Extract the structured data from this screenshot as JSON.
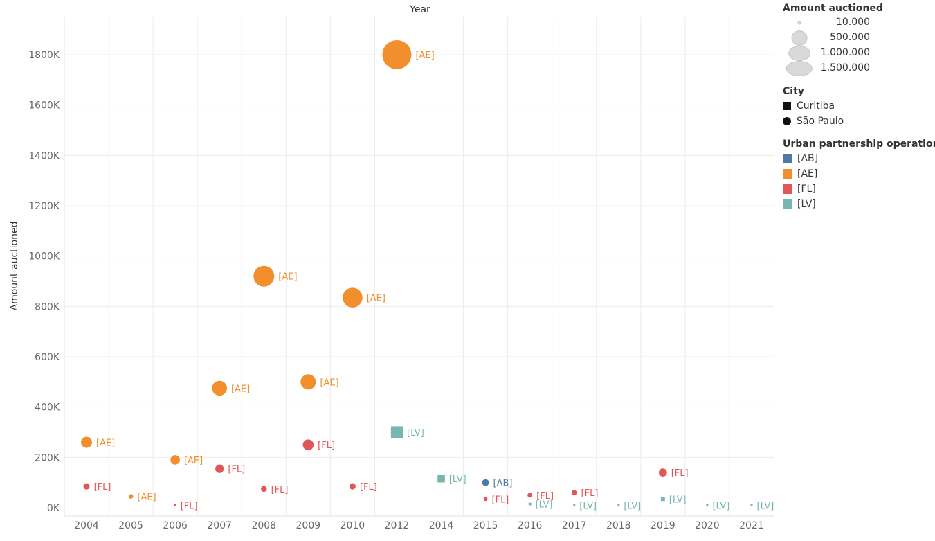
{
  "chart_data": {
    "type": "scatter",
    "title": "Year",
    "ylabel": "Amount auctioned",
    "ylim": [
      0,
      1900000
    ],
    "yticks": [
      0,
      200000,
      400000,
      600000,
      800000,
      1000000,
      1200000,
      1400000,
      1600000,
      1800000
    ],
    "ytick_labels": [
      "0K",
      "200K",
      "400K",
      "600K",
      "800K",
      "1000K",
      "1200K",
      "1400K",
      "1600K",
      "1800K"
    ],
    "categories": [
      "2004",
      "2005",
      "2006",
      "2007",
      "2008",
      "2009",
      "2010",
      "2012",
      "2014",
      "2015",
      "2016",
      "2017",
      "2018",
      "2019",
      "2020",
      "2021"
    ],
    "grid": true,
    "legend_position": "right",
    "points": [
      {
        "year": "2004",
        "value": 260000,
        "op": "[AE]",
        "city": "São Paulo"
      },
      {
        "year": "2004",
        "value": 85000,
        "op": "[FL]",
        "city": "São Paulo"
      },
      {
        "year": "2005",
        "value": 45000,
        "op": "[AE]",
        "city": "São Paulo"
      },
      {
        "year": "2006",
        "value": 190000,
        "op": "[AE]",
        "city": "São Paulo"
      },
      {
        "year": "2006",
        "value": 10000,
        "op": "[FL]",
        "city": "São Paulo"
      },
      {
        "year": "2007",
        "value": 475000,
        "op": "[AE]",
        "city": "São Paulo"
      },
      {
        "year": "2007",
        "value": 155000,
        "op": "[FL]",
        "city": "São Paulo"
      },
      {
        "year": "2008",
        "value": 920000,
        "op": "[AE]",
        "city": "São Paulo"
      },
      {
        "year": "2008",
        "value": 75000,
        "op": "[FL]",
        "city": "São Paulo"
      },
      {
        "year": "2009",
        "value": 500000,
        "op": "[AE]",
        "city": "São Paulo"
      },
      {
        "year": "2009",
        "value": 250000,
        "op": "[FL]",
        "city": "São Paulo"
      },
      {
        "year": "2010",
        "value": 835000,
        "op": "[AE]",
        "city": "São Paulo"
      },
      {
        "year": "2010",
        "value": 85000,
        "op": "[FL]",
        "city": "São Paulo"
      },
      {
        "year": "2012",
        "value": 1800000,
        "op": "[AE]",
        "city": "São Paulo"
      },
      {
        "year": "2012",
        "value": 300000,
        "op": "[LV]",
        "city": "Curitiba"
      },
      {
        "year": "2014",
        "value": 115000,
        "op": "[LV]",
        "city": "Curitiba"
      },
      {
        "year": "2015",
        "value": 100000,
        "op": "[AB]",
        "city": "São Paulo"
      },
      {
        "year": "2015",
        "value": 35000,
        "op": "[FL]",
        "city": "São Paulo"
      },
      {
        "year": "2016",
        "value": 50000,
        "op": "[FL]",
        "city": "São Paulo"
      },
      {
        "year": "2016",
        "value": 15000,
        "op": "[LV]",
        "city": "Curitiba"
      },
      {
        "year": "2017",
        "value": 60000,
        "op": "[FL]",
        "city": "São Paulo"
      },
      {
        "year": "2017",
        "value": 10000,
        "op": "[LV]",
        "city": "Curitiba"
      },
      {
        "year": "2018",
        "value": 10000,
        "op": "[LV]",
        "city": "Curitiba"
      },
      {
        "year": "2019",
        "value": 140000,
        "op": "[FL]",
        "city": "São Paulo"
      },
      {
        "year": "2019",
        "value": 35000,
        "op": "[LV]",
        "city": "Curitiba"
      },
      {
        "year": "2020",
        "value": 10000,
        "op": "[LV]",
        "city": "Curitiba"
      },
      {
        "year": "2021",
        "value": 10000,
        "op": "[LV]",
        "city": "Curitiba"
      }
    ]
  },
  "colors": {
    "[AB]": "#4e79a7",
    "[AE]": "#f28e2b",
    "[FL]": "#e15759",
    "[LV]": "#76b7b2"
  },
  "legend": {
    "size": {
      "title": "Amount auctioned",
      "items": [
        {
          "label": "10.000",
          "value": 10000
        },
        {
          "label": "500.000",
          "value": 500000
        },
        {
          "label": "1.000.000",
          "value": 1000000
        },
        {
          "label": "1.500.000",
          "value": 1500000
        }
      ]
    },
    "city": {
      "title": "City",
      "items": [
        "Curitiba",
        "São Paulo"
      ]
    },
    "operation": {
      "title": "Urban partnership operation",
      "items": [
        "[AB]",
        "[AE]",
        "[FL]",
        "[LV]"
      ]
    }
  }
}
